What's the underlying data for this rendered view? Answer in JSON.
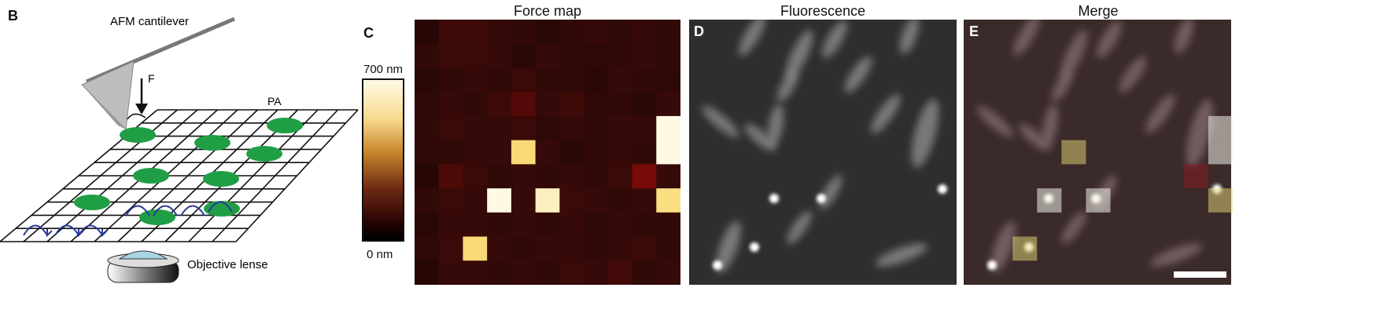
{
  "panels": {
    "b": {
      "letter": "B",
      "cantilever_label": "AFM cantilever",
      "force_label": "F",
      "pa_label": "PA",
      "lens_label": "Objective lense"
    },
    "c": {
      "letter": "C",
      "title": "Force map",
      "colorbar_max": "700 nm",
      "colorbar_min": "0 nm"
    },
    "d": {
      "letter": "D",
      "title": "Fluorescence"
    },
    "e": {
      "letter": "E",
      "title": "Merge"
    }
  },
  "colors": {
    "grid_line": "#111111",
    "bacteria": "#1f9e45",
    "arrow_blue": "#2b3a9a",
    "heat_dark": "#2a0606",
    "heat_mid": "#4a0d0b",
    "heat_bright": "#fff8d8",
    "heat_yellow": "#f5d46a",
    "fluo_bg": "#2e2e2e"
  },
  "chart_data": {
    "type": "heatmap",
    "title": "Force map",
    "rows": 11,
    "cols": 11,
    "colorbar": {
      "min": 0,
      "max": 700,
      "unit": "nm"
    },
    "values": [
      [
        40,
        70,
        70,
        60,
        55,
        45,
        55,
        60,
        50,
        60,
        55
      ],
      [
        55,
        65,
        65,
        60,
        45,
        60,
        55,
        50,
        55,
        60,
        55
      ],
      [
        45,
        55,
        60,
        55,
        65,
        55,
        50,
        45,
        60,
        55,
        50
      ],
      [
        50,
        60,
        55,
        70,
        95,
        60,
        70,
        50,
        55,
        45,
        60
      ],
      [
        55,
        65,
        60,
        60,
        65,
        50,
        60,
        55,
        60,
        60,
        690
      ],
      [
        50,
        55,
        60,
        60,
        540,
        60,
        45,
        55,
        60,
        55,
        690
      ],
      [
        40,
        90,
        65,
        55,
        60,
        55,
        60,
        55,
        65,
        140,
        60
      ],
      [
        55,
        65,
        60,
        690,
        60,
        640,
        65,
        60,
        55,
        60,
        560
      ],
      [
        45,
        60,
        60,
        55,
        60,
        55,
        60,
        50,
        60,
        55,
        55
      ],
      [
        50,
        65,
        540,
        60,
        55,
        60,
        60,
        55,
        60,
        65,
        55
      ],
      [
        40,
        60,
        60,
        55,
        60,
        55,
        65,
        60,
        75,
        55,
        60
      ]
    ]
  },
  "fluorescence": {
    "rods": [
      [
        80,
        20,
        60,
        18,
        -60
      ],
      [
        140,
        45,
        70,
        20,
        -65
      ],
      [
        185,
        25,
        55,
        18,
        -60
      ],
      [
        280,
        20,
        50,
        18,
        -70
      ],
      [
        125,
        85,
        45,
        16,
        -60
      ],
      [
        215,
        70,
        55,
        18,
        -55
      ],
      [
        110,
        135,
        55,
        18,
        -80
      ],
      [
        40,
        130,
        60,
        16,
        40
      ],
      [
        90,
        150,
        50,
        16,
        40
      ],
      [
        300,
        145,
        90,
        26,
        -75
      ],
      [
        250,
        120,
        60,
        18,
        -55
      ],
      [
        50,
        290,
        70,
        22,
        -70
      ],
      [
        140,
        265,
        50,
        16,
        -55
      ],
      [
        270,
        300,
        70,
        18,
        -20
      ],
      [
        180,
        220,
        50,
        16,
        -60
      ]
    ],
    "spots": [
      [
        108,
        228
      ],
      [
        168,
        228
      ],
      [
        322,
        216
      ],
      [
        36,
        313
      ],
      [
        83,
        290
      ]
    ]
  }
}
